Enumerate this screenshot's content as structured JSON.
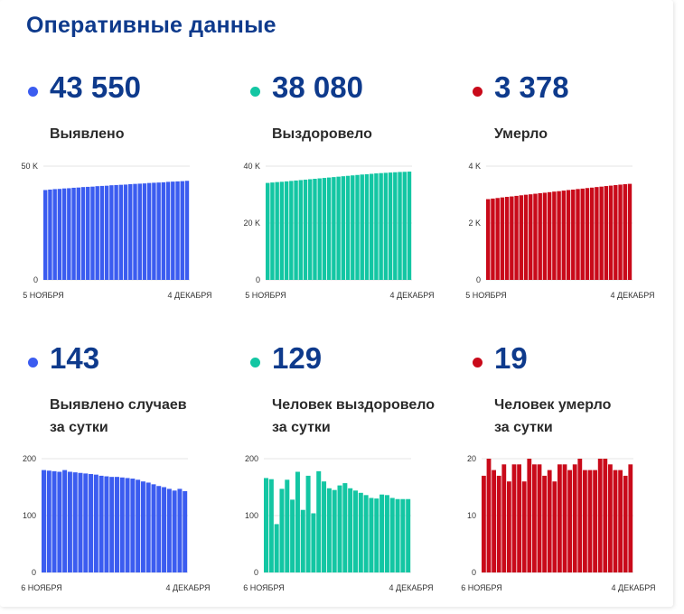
{
  "title": "Оперативные данные",
  "panels": [
    {
      "value": "43 550",
      "label": "Выявлено",
      "color": "#3b5cf0"
    },
    {
      "value": "38 080",
      "label": "Выздоровело",
      "color": "#13c6a3"
    },
    {
      "value": "3 378",
      "label": "Умерло",
      "color": "#c90a1a"
    },
    {
      "value": "143",
      "label": "Выявлено случаев за сутки",
      "color": "#3b5cf0"
    },
    {
      "value": "129",
      "label": "Человек выздоровело за сутки",
      "color": "#13c6a3"
    },
    {
      "value": "19",
      "label": "Человек умерло за сутки",
      "color": "#c90a1a"
    }
  ],
  "chart_data": [
    {
      "type": "bar",
      "yticks": [
        "50 K",
        "0"
      ],
      "ymax": 50000,
      "xstart": "5 НОЯБРЯ",
      "xend": "4 ДЕКАБРЯ",
      "values": [
        39500,
        39700,
        39900,
        40000,
        40200,
        40300,
        40500,
        40600,
        40800,
        40900,
        41000,
        41200,
        41300,
        41400,
        41600,
        41700,
        41800,
        41900,
        42100,
        42200,
        42300,
        42400,
        42600,
        42700,
        42800,
        42900,
        43100,
        43200,
        43300,
        43400,
        43550
      ]
    },
    {
      "type": "bar",
      "yticks": [
        "40 K",
        "20 K",
        "0"
      ],
      "ymax": 40000,
      "xstart": "5 НОЯБРЯ",
      "xend": "4 ДЕКАБРЯ",
      "values": [
        34100,
        34250,
        34400,
        34500,
        34650,
        34800,
        34950,
        35100,
        35250,
        35400,
        35550,
        35700,
        35850,
        36000,
        36150,
        36300,
        36450,
        36600,
        36750,
        36900,
        37050,
        37150,
        37300,
        37450,
        37550,
        37650,
        37750,
        37850,
        37950,
        38000,
        38080
      ]
    },
    {
      "type": "bar",
      "yticks": [
        "4 K",
        "2 K",
        "0"
      ],
      "ymax": 4000,
      "xstart": "5 НОЯБРЯ",
      "xend": "4 ДЕКАБРЯ",
      "values": [
        2840,
        2860,
        2880,
        2900,
        2920,
        2935,
        2955,
        2975,
        2995,
        3010,
        3030,
        3050,
        3065,
        3085,
        3105,
        3120,
        3140,
        3160,
        3175,
        3195,
        3210,
        3230,
        3245,
        3265,
        3280,
        3300,
        3315,
        3335,
        3350,
        3365,
        3378
      ]
    },
    {
      "type": "bar",
      "yticks": [
        "200",
        "100",
        "0"
      ],
      "ymax": 200,
      "xstart": "6 НОЯБРЯ",
      "xend": "4 ДЕКАБРЯ",
      "values": [
        180,
        179,
        178,
        177,
        180,
        177,
        176,
        175,
        174,
        173,
        172,
        170,
        169,
        168,
        168,
        167,
        166,
        165,
        163,
        160,
        158,
        155,
        152,
        150,
        147,
        144,
        147,
        143
      ]
    },
    {
      "type": "bar",
      "yticks": [
        "200",
        "100",
        "0"
      ],
      "ymax": 200,
      "xstart": "6 НОЯБРЯ",
      "xend": "4 ДЕКАБРЯ",
      "values": [
        166,
        164,
        85,
        147,
        163,
        128,
        177,
        110,
        170,
        104,
        178,
        160,
        148,
        145,
        153,
        157,
        148,
        144,
        140,
        136,
        131,
        130,
        137,
        136,
        131,
        129,
        129,
        129
      ]
    },
    {
      "type": "bar",
      "yticks": [
        "20",
        "10",
        "0"
      ],
      "ymax": 20,
      "xstart": "6 НОЯБРЯ",
      "xend": "4 ДЕКАБРЯ",
      "values": [
        17,
        20,
        18,
        17,
        19,
        16,
        19,
        19,
        16,
        20,
        19,
        19,
        17,
        18,
        16,
        19,
        19,
        18,
        19,
        20,
        18,
        18,
        18,
        20,
        20,
        19,
        18,
        18,
        17,
        19
      ]
    }
  ]
}
